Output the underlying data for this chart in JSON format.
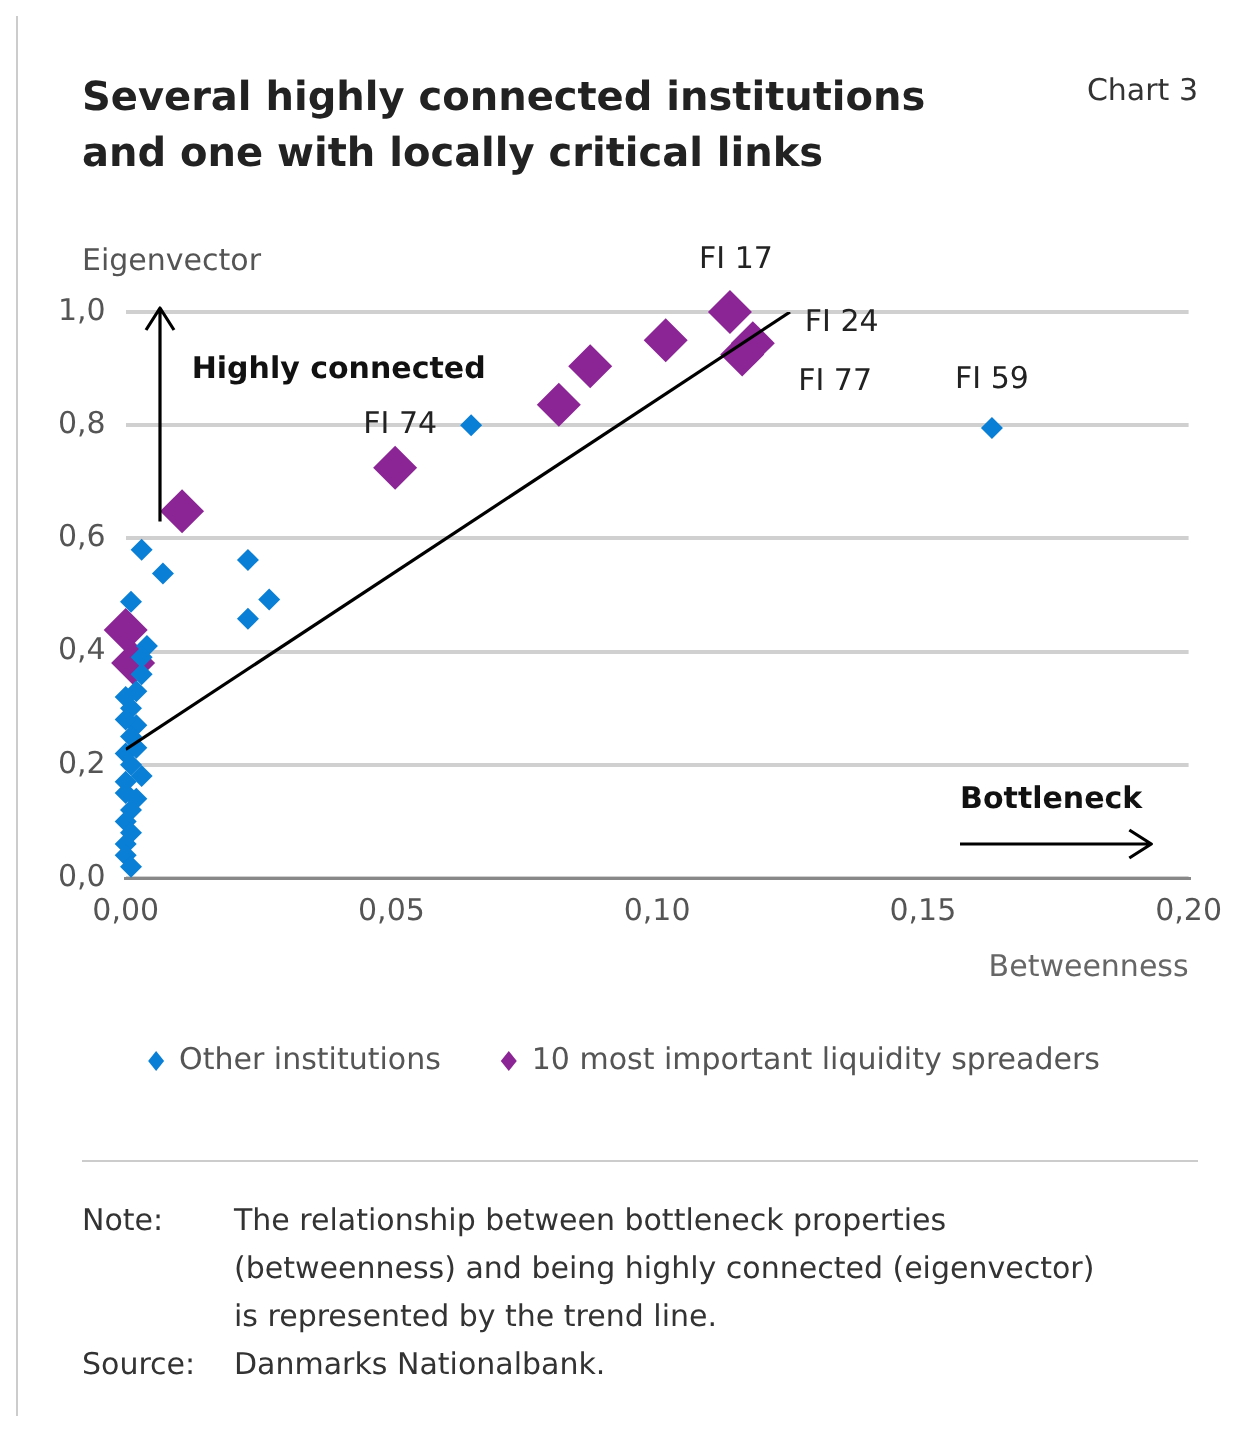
{
  "chart_data": {
    "type": "scatter",
    "title": "Several highly connected institutions and one with locally critical links",
    "ylabel": "Eigenvector",
    "xlabel": "Betweenness",
    "xlim": [
      0,
      0.2
    ],
    "xticks": [
      {
        "value": 0,
        "label": "0,00"
      },
      {
        "value": 0.05,
        "label": "0,05"
      },
      {
        "value": 0.1,
        "label": "0,10"
      },
      {
        "value": 0.15,
        "label": "0,15"
      },
      {
        "value": 0.2,
        "label": "0,20"
      }
    ],
    "ylim": [
      0,
      1
    ],
    "yticks": [
      {
        "value": 0,
        "label": "0,0"
      },
      {
        "value": 0.2,
        "label": "0,2"
      },
      {
        "value": 0.4,
        "label": "0,4"
      },
      {
        "value": 0.6,
        "label": "0,6"
      },
      {
        "value": 0.8,
        "label": "0,8"
      },
      {
        "value": 1,
        "label": "1,0"
      }
    ],
    "grid": "y",
    "legend": "bottom",
    "marker": "diamond",
    "series": [
      {
        "name": "Other institutions",
        "color": "#0a7fd6",
        "x": [
          0.065,
          0.163,
          0.003,
          0.007,
          0.023,
          0.023,
          0.027,
          0.001,
          0.004,
          0.003,
          0.002,
          0.003,
          0.002,
          0.001,
          0.002,
          0.001,
          0,
          0.001,
          0,
          0.001,
          0,
          0.001,
          0,
          0,
          0.001,
          0,
          0.002,
          0,
          0.003,
          0
        ],
        "values": [
          0.8,
          0.795,
          0.58,
          0.538,
          0.562,
          0.458,
          0.492,
          0.488,
          0.41,
          0.18,
          0.14,
          0.36,
          0.33,
          0.3,
          0.27,
          0.25,
          0.22,
          0.2,
          0.17,
          0.12,
          0.1,
          0.08,
          0.06,
          0.04,
          0.02,
          0.28,
          0.23,
          0.32,
          0.39,
          0.15
        ]
      },
      {
        "name": "10 most important liquidity spreaders",
        "color": "#8b2595",
        "x": [
          0.0106,
          0.0507,
          0.0815,
          0.0874,
          0,
          0.0014,
          0.1016,
          0.1137,
          0.118,
          0.116
        ],
        "values": [
          0.648,
          0.725,
          0.836,
          0.904,
          0.438,
          0.38,
          0.95,
          1.0,
          0.945,
          0.925
        ]
      },
      {
        "type": "line",
        "color": "#000000",
        "marker": "none",
        "x": [
          0,
          0.125
        ],
        "values": [
          0.227,
          1.0
        ]
      }
    ],
    "annotations": [
      {
        "text": "FI 17",
        "x": 0.1137,
        "y": 1.0
      },
      {
        "text": "FI 24",
        "x": 0.118,
        "y": 0.945
      },
      {
        "text": "FI 77",
        "x": 0.116,
        "y": 0.925
      },
      {
        "text": "FI 59",
        "x": 0.163,
        "y": 0.795
      },
      {
        "text": "FI 74",
        "x": 0.065,
        "y": 0.8
      },
      "Highly connected",
      "Bottleneck",
      "Chart 3",
      "Note: The relationship between bottleneck properties (betweenness) and being highly connected (eigenvector) is represented by the trend line.",
      "Source: Danmarks Nationalbank."
    ]
  }
}
